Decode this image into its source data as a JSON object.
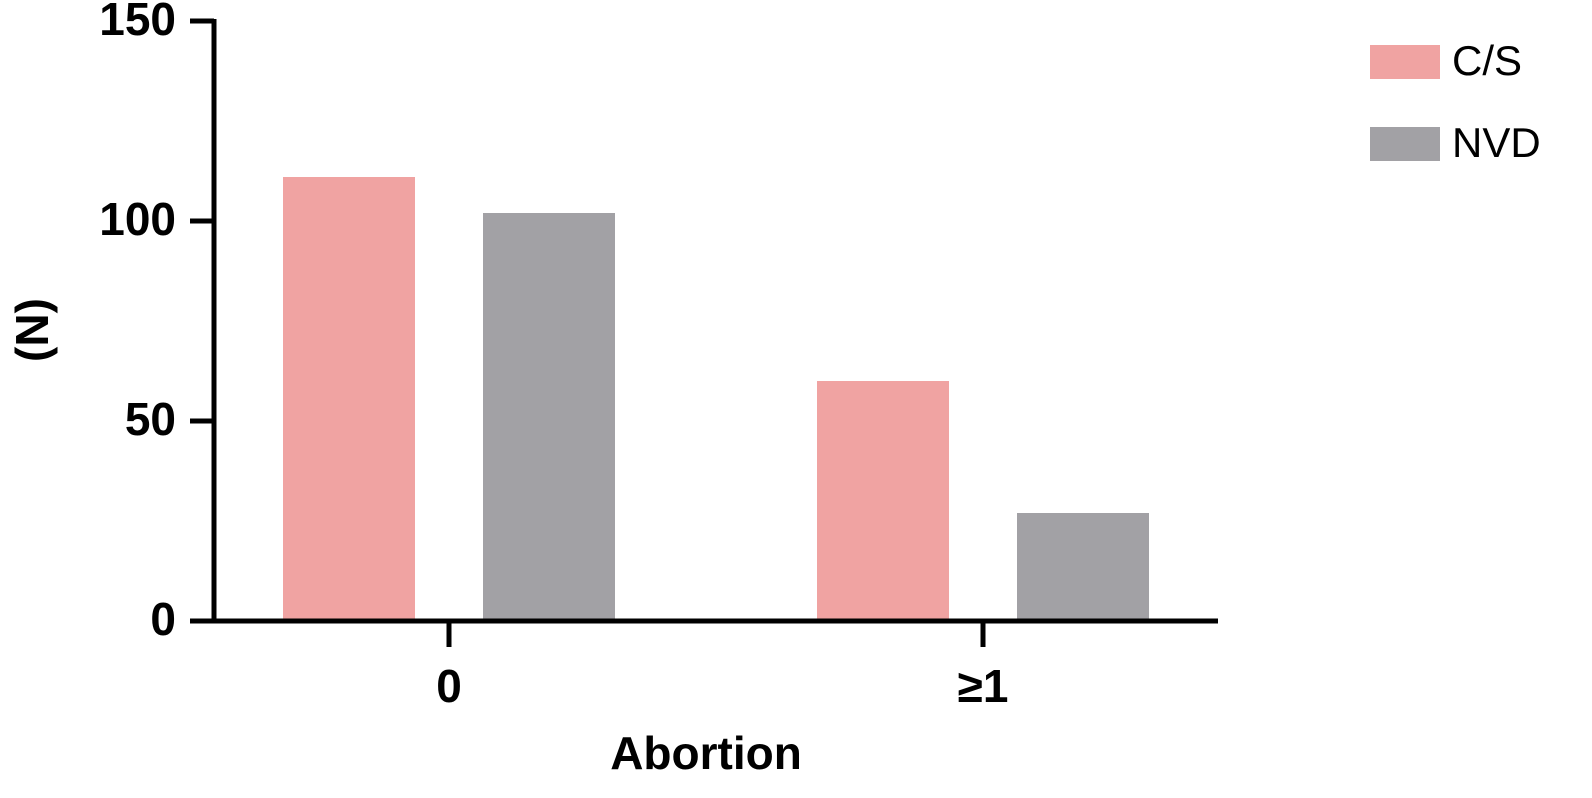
{
  "chart_data": {
    "type": "bar",
    "x_label": "Abortion",
    "y_label": "(N)",
    "categories": [
      "0",
      "≥1"
    ],
    "series": [
      {
        "name": "C/S",
        "color": "#f0a3a2",
        "values": [
          111,
          60
        ]
      },
      {
        "name": "NVD",
        "color": "#a2a1a5",
        "values": [
          102,
          27
        ]
      }
    ],
    "ylim": [
      0,
      150
    ],
    "yticks": [
      0,
      50,
      100,
      150
    ]
  }
}
